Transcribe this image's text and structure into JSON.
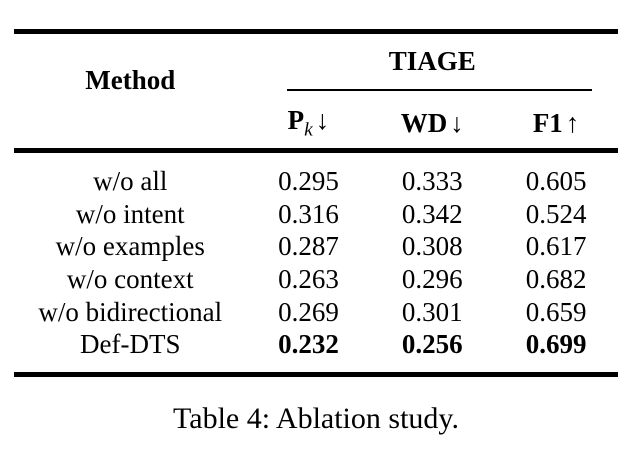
{
  "page": {
    "background": "#ffffff",
    "text_color": "#000000",
    "rule_color": "#000000"
  },
  "table": {
    "header": {
      "method": "Method",
      "group": "TIAGE",
      "metrics": [
        {
          "label": "P",
          "sub": "k",
          "arrow": "↓"
        },
        {
          "label": "WD",
          "sub": "",
          "arrow": "↓"
        },
        {
          "label": "F1",
          "sub": "",
          "arrow": "↑"
        }
      ]
    },
    "rows": [
      {
        "method": "w/o all",
        "pk": "0.295",
        "wd": "0.333",
        "f1": "0.605",
        "bold": false
      },
      {
        "method": "w/o intent",
        "pk": "0.316",
        "wd": "0.342",
        "f1": "0.524",
        "bold": false
      },
      {
        "method": "w/o examples",
        "pk": "0.287",
        "wd": "0.308",
        "f1": "0.617",
        "bold": false
      },
      {
        "method": "w/o context",
        "pk": "0.263",
        "wd": "0.296",
        "f1": "0.682",
        "bold": false
      },
      {
        "method": "w/o bidirectional",
        "pk": "0.269",
        "wd": "0.301",
        "f1": "0.659",
        "bold": false
      },
      {
        "method": "Def-DTS",
        "pk": "0.232",
        "wd": "0.256",
        "f1": "0.699",
        "bold": true
      }
    ],
    "caption": "Table 4: Ablation study."
  }
}
